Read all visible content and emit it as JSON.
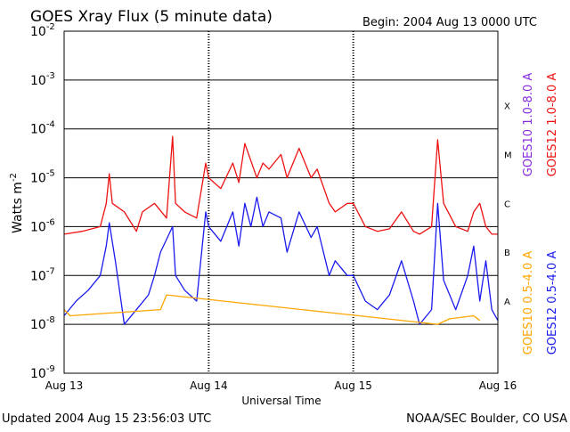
{
  "title": "GOES Xray Flux (5 minute data)",
  "begin_label": "Begin:  2004 Aug 13 0000 UTC",
  "updated_label": "Updated 2004 Aug 15 23:56:03 UTC",
  "credit_label": "NOAA/SEC Boulder, CO USA",
  "colors": {
    "goes10_long": "#8a2be2",
    "goes12_long": "#ee1111",
    "goes10_short": "#ffa500",
    "goes12_short": "#1a1aee",
    "axis": "#000000"
  },
  "chart_data": {
    "type": "line",
    "ylabel_base": "Watts m",
    "ylabel_exp": "-2",
    "xlabel": "Universal Time",
    "y_scale": "log",
    "ylim": [
      1e-09,
      0.01
    ],
    "xlim": [
      "2004-08-13T00:00",
      "2004-08-16T00:00"
    ],
    "grid": "horizontal at decades",
    "y_ticks": [
      {
        "base": "10",
        "exp": "-9",
        "value": 1e-09
      },
      {
        "base": "10",
        "exp": "-8",
        "value": 1e-08
      },
      {
        "base": "10",
        "exp": "-7",
        "value": 1e-07
      },
      {
        "base": "10",
        "exp": "-6",
        "value": 1e-06
      },
      {
        "base": "10",
        "exp": "-5",
        "value": 1e-05
      },
      {
        "base": "10",
        "exp": "-4",
        "value": 0.0001
      },
      {
        "base": "10",
        "exp": "-3",
        "value": 0.001
      },
      {
        "base": "10",
        "exp": "-2",
        "value": 0.01
      }
    ],
    "x_ticks": [
      {
        "label": "Aug 13",
        "value": "2004-08-13T00:00"
      },
      {
        "label": "Aug 14",
        "value": "2004-08-14T00:00"
      },
      {
        "label": "Aug 15",
        "value": "2004-08-15T00:00"
      },
      {
        "label": "Aug 16",
        "value": "2004-08-16T00:00"
      }
    ],
    "flare_classes": [
      {
        "label": "A",
        "value": 3e-08
      },
      {
        "label": "B",
        "value": 3e-07
      },
      {
        "label": "C",
        "value": 3e-06
      },
      {
        "label": "M",
        "value": 3e-05
      },
      {
        "label": "X",
        "value": 0.0003
      }
    ],
    "series": [
      {
        "name": "GOES12 1.0-8.0 A",
        "color": "#ee1111",
        "x": [
          "2004-08-13T00:00",
          "2004-08-13T03:00",
          "2004-08-13T06:00",
          "2004-08-13T07:00",
          "2004-08-13T07:30",
          "2004-08-13T08:00",
          "2004-08-13T10:00",
          "2004-08-13T12:00",
          "2004-08-13T13:00",
          "2004-08-13T15:00",
          "2004-08-13T17:00",
          "2004-08-13T18:00",
          "2004-08-13T18:30",
          "2004-08-13T20:00",
          "2004-08-13T22:00",
          "2004-08-13T23:30",
          "2004-08-14T00:00",
          "2004-08-14T02:00",
          "2004-08-14T04:00",
          "2004-08-14T05:00",
          "2004-08-14T06:00",
          "2004-08-14T08:00",
          "2004-08-14T09:00",
          "2004-08-14T10:00",
          "2004-08-14T12:00",
          "2004-08-14T13:00",
          "2004-08-14T15:00",
          "2004-08-14T17:00",
          "2004-08-14T18:00",
          "2004-08-14T20:00",
          "2004-08-14T21:00",
          "2004-08-14T23:00",
          "2004-08-15T00:00",
          "2004-08-15T02:00",
          "2004-08-15T04:00",
          "2004-08-15T06:00",
          "2004-08-15T08:00",
          "2004-08-15T10:00",
          "2004-08-15T11:00",
          "2004-08-15T13:00",
          "2004-08-15T14:00",
          "2004-08-15T15:00",
          "2004-08-15T17:00",
          "2004-08-15T19:00",
          "2004-08-15T20:00",
          "2004-08-15T21:00",
          "2004-08-15T22:00",
          "2004-08-15T23:00",
          "2004-08-16T00:00"
        ],
        "values": [
          7e-07,
          8e-07,
          1e-06,
          3e-06,
          1.2e-05,
          3e-06,
          2e-06,
          8e-07,
          2e-06,
          3e-06,
          1.5e-06,
          7e-05,
          3e-06,
          2e-06,
          1.5e-06,
          2e-05,
          1e-05,
          6e-06,
          2e-05,
          8e-06,
          5e-05,
          1e-05,
          2e-05,
          1.5e-05,
          3e-05,
          1e-05,
          4e-05,
          1e-05,
          1.5e-05,
          3e-06,
          2e-06,
          3e-06,
          3e-06,
          1e-06,
          8e-07,
          9e-07,
          2e-06,
          8e-07,
          7e-07,
          1e-06,
          6e-05,
          3e-06,
          1e-06,
          8e-07,
          2e-06,
          3e-06,
          1e-06,
          7e-07,
          7e-07
        ]
      },
      {
        "name": "GOES10 1.0-8.0 A",
        "color": "#8a2be2",
        "x": [],
        "values": []
      },
      {
        "name": "GOES12 0.5-4.0 A",
        "color": "#1a1aee",
        "x": [
          "2004-08-13T00:00",
          "2004-08-13T02:00",
          "2004-08-13T04:00",
          "2004-08-13T06:00",
          "2004-08-13T07:00",
          "2004-08-13T07:30",
          "2004-08-13T08:30",
          "2004-08-13T10:00",
          "2004-08-13T12:00",
          "2004-08-13T14:00",
          "2004-08-13T15:00",
          "2004-08-13T16:00",
          "2004-08-13T18:00",
          "2004-08-13T18:30",
          "2004-08-13T20:00",
          "2004-08-13T22:00",
          "2004-08-13T23:30",
          "2004-08-14T00:00",
          "2004-08-14T02:00",
          "2004-08-14T04:00",
          "2004-08-14T05:00",
          "2004-08-14T06:00",
          "2004-08-14T07:00",
          "2004-08-14T08:00",
          "2004-08-14T09:00",
          "2004-08-14T10:00",
          "2004-08-14T12:00",
          "2004-08-14T13:00",
          "2004-08-14T15:00",
          "2004-08-14T17:00",
          "2004-08-14T18:00",
          "2004-08-14T20:00",
          "2004-08-14T21:00",
          "2004-08-14T23:00",
          "2004-08-15T00:00",
          "2004-08-15T02:00",
          "2004-08-15T04:00",
          "2004-08-15T06:00",
          "2004-08-15T08:00",
          "2004-08-15T10:00",
          "2004-08-15T11:00",
          "2004-08-15T13:00",
          "2004-08-15T14:00",
          "2004-08-15T15:00",
          "2004-08-15T17:00",
          "2004-08-15T19:00",
          "2004-08-15T20:00",
          "2004-08-15T21:00",
          "2004-08-15T22:00",
          "2004-08-15T23:00",
          "2004-08-16T00:00"
        ],
        "values": [
          1.5e-08,
          3e-08,
          5e-08,
          1e-07,
          4e-07,
          1.2e-06,
          2e-07,
          1e-08,
          2e-08,
          4e-08,
          1e-07,
          3e-07,
          1e-06,
          1e-07,
          5e-08,
          3e-08,
          2e-06,
          1e-06,
          5e-07,
          2e-06,
          4e-07,
          3e-06,
          1e-06,
          4e-06,
          1e-06,
          2e-06,
          1.5e-06,
          3e-07,
          2e-06,
          6e-07,
          1e-06,
          1e-07,
          2e-07,
          1e-07,
          1e-07,
          3e-08,
          2e-08,
          4e-08,
          2e-07,
          3e-08,
          1e-08,
          2e-08,
          3e-06,
          8e-08,
          2e-08,
          1e-07,
          4e-07,
          3e-08,
          2e-07,
          2e-08,
          1.2e-08
        ]
      },
      {
        "name": "GOES10 0.5-4.0 A",
        "color": "#ffa500",
        "x": [
          "2004-08-13T00:00",
          "2004-08-13T01:00",
          "2004-08-13T16:00",
          "2004-08-13T17:00",
          "2004-08-15T14:00",
          "2004-08-15T16:00",
          "2004-08-15T20:00",
          "2004-08-15T21:00"
        ],
        "values": [
          2e-08,
          1.5e-08,
          2e-08,
          4e-08,
          1e-08,
          1.3e-08,
          1.5e-08,
          1.2e-08
        ]
      }
    ]
  }
}
